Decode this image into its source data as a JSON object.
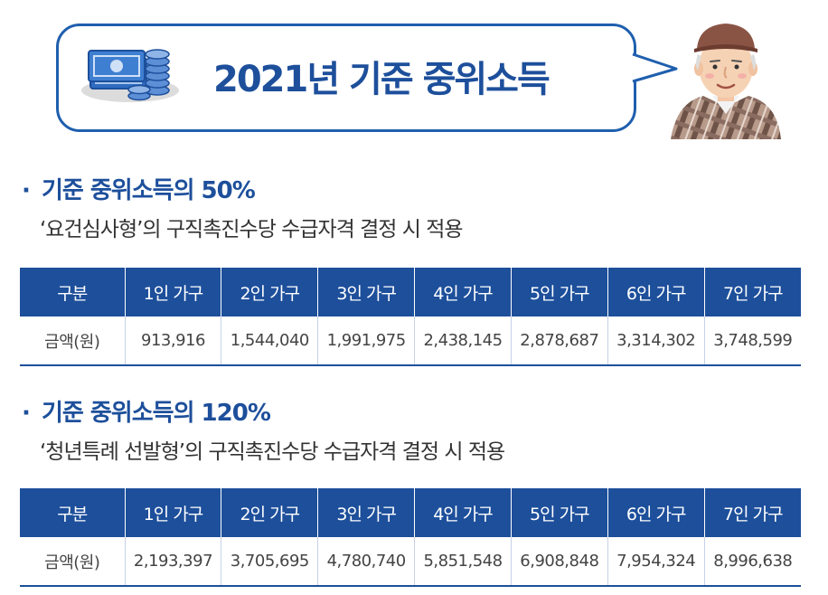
{
  "header": {
    "title": "2021년 기준 중위소득"
  },
  "colors": {
    "brand_blue": "#1d4f9b",
    "bubble_border": "#1f5fae"
  },
  "sections": [
    {
      "title": "기준 중위소득의 50%",
      "desc": "‘요건심사형’의 구직촉진수당 수급자격 결정 시 적용",
      "table": {
        "headers": [
          "구분",
          "1인 가구",
          "2인 가구",
          "3인 가구",
          "4인 가구",
          "5인 가구",
          "6인 가구",
          "7인 가구"
        ],
        "row_label": "금액(원)",
        "values": [
          "913,916",
          "1,544,040",
          "1,991,975",
          "2,438,145",
          "2,878,687",
          "3,314,302",
          "3,748,599"
        ]
      }
    },
    {
      "title": "기준 중위소득의 120%",
      "desc": "‘청년특례 선발형’의 구직촉진수당 수급자격 결정 시 적용",
      "table": {
        "headers": [
          "구분",
          "1인 가구",
          "2인 가구",
          "3인 가구",
          "4인 가구",
          "5인 가구",
          "6인 가구",
          "7인 가구"
        ],
        "row_label": "금액(원)",
        "values": [
          "2,193,397",
          "3,705,695",
          "4,780,740",
          "5,851,548",
          "6,908,848",
          "7,954,324",
          "8,996,638"
        ]
      }
    }
  ]
}
